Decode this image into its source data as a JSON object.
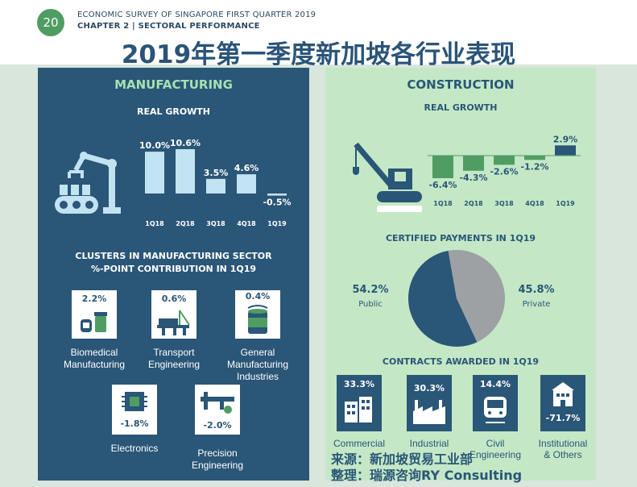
{
  "header": {
    "page_number": "20",
    "line1": "ECONOMIC SURVEY OF SINGAPORE FIRST QUARTER 2019",
    "line2": "CHAPTER 2  |  SECTORAL PERFORMANCE",
    "title": "2019年第一季度新加坡各行业表现"
  },
  "colors": {
    "navy": "#2a5677",
    "mint": "#c4e8c6",
    "light_blue_bar": "#c2e3f2",
    "green_bar": "#4f9d63",
    "pie_grey": "#9ea1a4"
  },
  "manufacturing": {
    "title": "MANUFACTURING",
    "real_growth_title": "REAL GROWTH",
    "clusters_title_1": "CLUSTERS IN MANUFACTURING SECTOR",
    "clusters_title_2": "%-POINT CONTRIBUTION IN 1Q19",
    "clusters": [
      {
        "label1": "Biomedical",
        "label2": "Manufacturing",
        "label3": "",
        "value": "2.2%",
        "icon": "pill-bottle-icon"
      },
      {
        "label1": "Transport",
        "label2": "Engineering",
        "label3": "",
        "value": "0.6%",
        "icon": "oil-rig-icon"
      },
      {
        "label1": "General",
        "label2": "Manufacturing",
        "label3": "Industries",
        "value": "0.4%",
        "icon": "paint-can-icon"
      },
      {
        "label1": "Electronics",
        "label2": "",
        "label3": "",
        "value": "-1.8%",
        "icon": "chip-icon"
      },
      {
        "label1": "Precision",
        "label2": "Engineering",
        "label3": "",
        "value": "-2.0%",
        "icon": "caliper-icon"
      }
    ]
  },
  "construction": {
    "title": "CONSTRUCTION",
    "real_growth_title": "REAL GROWTH",
    "payments_title": "CERTIFIED PAYMENTS IN 1Q19",
    "contracts_title": "CONTRACTS AWARDED IN 1Q19",
    "contracts": [
      {
        "label1": "Commercial",
        "label2": "",
        "value": "33.3%",
        "icon": "office-buildings-icon"
      },
      {
        "label1": "Industrial",
        "label2": "",
        "value": "30.3%",
        "icon": "factory-icon"
      },
      {
        "label1": "Civil",
        "label2": "Engineering",
        "value": "14.4%",
        "icon": "train-icon"
      },
      {
        "label1": "Institutional",
        "label2": "& Others",
        "value": "-71.7%",
        "icon": "institution-building-icon"
      }
    ]
  },
  "source": {
    "line1": "来源：新加坡贸易工业部",
    "line2": "整理：瑞源咨询RY Consulting"
  },
  "chart_data": [
    {
      "type": "bar",
      "title": "REAL GROWTH",
      "categories": [
        "1Q18",
        "2Q18",
        "3Q18",
        "4Q18",
        "1Q19"
      ],
      "values": [
        10.0,
        10.6,
        3.5,
        4.6,
        -0.5
      ],
      "value_labels": [
        "10.0%",
        "10.6%",
        "3.5%",
        "4.6%",
        "-0.5%"
      ]
    },
    {
      "type": "bar",
      "title": "REAL GROWTH",
      "categories": [
        "1Q18",
        "2Q18",
        "3Q18",
        "4Q18",
        "1Q19"
      ],
      "values": [
        -6.4,
        -4.3,
        -2.6,
        -1.2,
        2.9
      ],
      "value_labels": [
        "-6.4%",
        "-4.3%",
        "-2.6%",
        "-1.2%",
        "2.9%"
      ]
    },
    {
      "type": "pie",
      "title": "CERTIFIED PAYMENTS IN 1Q19",
      "categories": [
        "Public",
        "Private"
      ],
      "values": [
        54.2,
        45.8
      ],
      "value_labels": [
        "54.2%",
        "45.8%"
      ]
    }
  ]
}
